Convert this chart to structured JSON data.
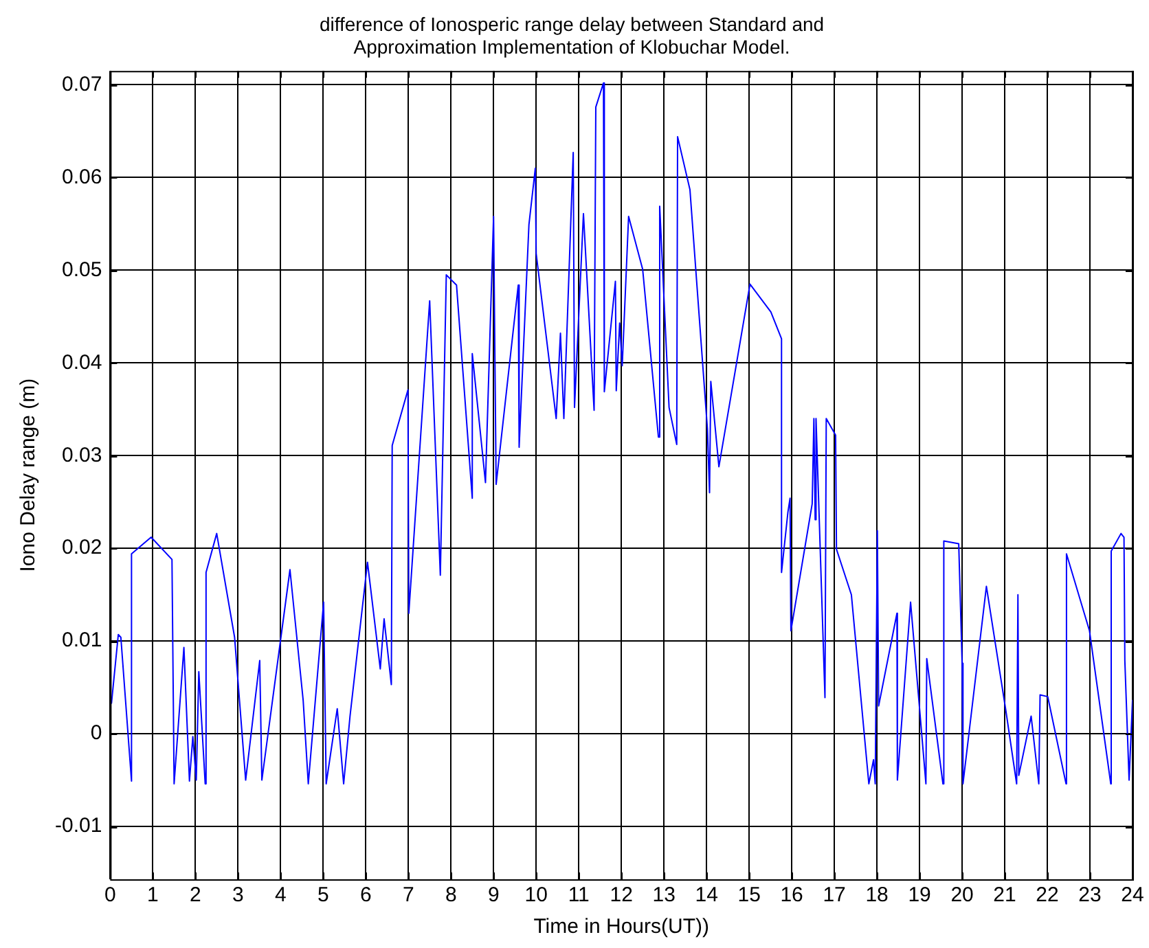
{
  "chart_data": {
    "type": "line",
    "title": "difference of Ionosperic range delay between Standard and\nApproximation Implementation of Klobuchar Model.",
    "xlabel": "Time in Hours(UT))",
    "ylabel": "Iono Delay range (m)",
    "x": [
      0.03,
      0.19,
      0.25,
      0.5,
      0.5,
      0.96,
      1.45,
      1.5,
      1.73,
      1.86,
      1.94,
      2.02,
      2.08,
      2.23,
      2.25,
      2.5,
      2.92,
      3.18,
      3.51,
      3.56,
      4.22,
      4.53,
      4.65,
      5.01,
      5.07,
      5.33,
      5.48,
      5.63,
      6.04,
      6.34,
      6.43,
      6.6,
      6.62,
      6.99,
      7.01,
      7.5,
      7.75,
      7.89,
      8.13,
      8.5,
      8.5,
      8.81,
      9.0,
      9.06,
      9.58,
      9.6,
      9.83,
      9.98,
      10.0,
      10.47,
      10.57,
      10.65,
      10.87,
      10.9,
      11.11,
      11.36,
      11.4,
      11.58,
      11.6,
      11.86,
      11.88,
      11.96,
      12.02,
      12.17,
      12.5,
      12.87,
      12.9,
      13.12,
      13.3,
      13.32,
      13.61,
      14.02,
      14.07,
      14.1,
      14.29,
      15.02,
      15.51,
      15.76,
      15.76,
      15.91,
      15.96,
      15.98,
      16.48,
      16.52,
      16.55,
      16.57,
      16.78,
      16.81,
      17.03,
      17.05,
      17.4,
      17.81,
      17.92,
      17.96,
      18.01,
      18.04,
      18.47,
      18.48,
      18.79,
      19.15,
      19.17,
      19.55,
      19.57,
      19.92,
      20.0,
      20.02,
      20.57,
      21.03,
      21.28,
      21.31,
      21.33,
      21.62,
      21.8,
      21.83,
      22.01,
      22.44,
      22.45,
      22.99,
      23.49,
      23.5,
      23.73,
      23.8,
      23.82,
      23.92,
      24.0
    ],
    "series": [
      {
        "color": "#0000ff",
        "values": [
          0.0033,
          0.0107,
          0.0104,
          -0.0051,
          0.0194,
          0.0212,
          0.0188,
          -0.0054,
          0.0093,
          -0.0051,
          -0.0003,
          -0.005,
          0.0067,
          -0.0054,
          0.0174,
          0.0216,
          0.0104,
          -0.005,
          0.0079,
          -0.005,
          0.0177,
          0.0036,
          -0.0054,
          0.0142,
          -0.0054,
          0.0027,
          -0.0054,
          0.0019,
          0.0185,
          0.007,
          0.0124,
          0.0053,
          0.0311,
          0.0371,
          0.013,
          0.0467,
          0.0171,
          0.0495,
          0.0484,
          0.0254,
          0.041,
          0.0271,
          0.0558,
          0.0269,
          0.0484,
          0.0309,
          0.0549,
          0.061,
          0.0518,
          0.034,
          0.0432,
          0.034,
          0.0627,
          0.0352,
          0.0561,
          0.0349,
          0.0676,
          0.0702,
          0.0369,
          0.0488,
          0.037,
          0.0443,
          0.0397,
          0.0558,
          0.0501,
          0.032,
          0.0569,
          0.0352,
          0.0312,
          0.0644,
          0.0587,
          0.0329,
          0.026,
          0.038,
          0.0288,
          0.0485,
          0.0455,
          0.0426,
          0.0174,
          0.0239,
          0.0254,
          0.0111,
          0.0248,
          0.034,
          0.0231,
          0.034,
          0.0039,
          0.034,
          0.0322,
          0.0199,
          0.015,
          -0.0054,
          -0.0028,
          -0.0054,
          0.0219,
          0.003,
          0.013,
          -0.005,
          0.0142,
          -0.0054,
          0.0081,
          -0.0054,
          0.0208,
          0.0205,
          0.0076,
          -0.0054,
          0.0159,
          0.0024,
          -0.0054,
          0.015,
          -0.0045,
          0.0019,
          -0.0054,
          0.0042,
          0.004,
          -0.0054,
          0.0194,
          0.0111,
          -0.0054,
          0.0197,
          0.0216,
          0.0212,
          0.0079,
          -0.005,
          0.0036
        ]
      }
    ],
    "xlim": [
      0,
      24
    ],
    "xticks": [
      0,
      1,
      2,
      3,
      4,
      5,
      6,
      7,
      8,
      9,
      10,
      11,
      12,
      13,
      14,
      15,
      16,
      17,
      18,
      19,
      20,
      21,
      22,
      23,
      24
    ],
    "ylim": [
      -0.0157,
      0.0715
    ],
    "yticks": [
      -0.01,
      0,
      0.01,
      0.02,
      0.03,
      0.04,
      0.05,
      0.06,
      0.07
    ],
    "grid": true,
    "legend": false,
    "marker": "none",
    "line_style": "solid"
  }
}
